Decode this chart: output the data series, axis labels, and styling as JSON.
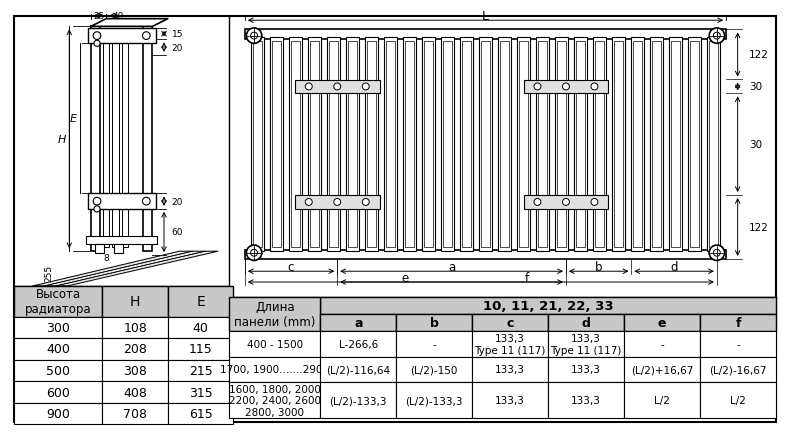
{
  "bg_color": "#ffffff",
  "table_header_bg": "#c8c8c8",
  "left_table": {
    "headers": [
      "Высота\nрадиатора",
      "H",
      "E"
    ],
    "rows": [
      [
        "300",
        "108",
        "40"
      ],
      [
        "400",
        "208",
        "115"
      ],
      [
        "500",
        "308",
        "215"
      ],
      [
        "600",
        "408",
        "315"
      ],
      [
        "900",
        "708",
        "615"
      ]
    ]
  },
  "right_table": {
    "header_merged": "10, 11, 21, 22, 33",
    "col1_header": "Длина\nпанели (mm)",
    "col_headers": [
      "a",
      "b",
      "c",
      "d",
      "e",
      "f"
    ],
    "rows": [
      [
        "400 - 1500",
        "L-266,6",
        "-",
        "133,3\nType 11 (117)",
        "133,3\nType 11 (117)",
        "-",
        "-"
      ],
      [
        "1700, 1900.......2900",
        "(L/2)-116,64",
        "(L/2)-150",
        "133,3",
        "133,3",
        "(L/2)+16,67",
        "(L/2)-16,67"
      ],
      [
        "1600, 1800, 2000\n2200, 2400, 2600\n2800, 3000",
        "(L/2)-133,3",
        "(L/2)-133,3",
        "133,3",
        "133,3",
        "L/2",
        "L/2"
      ]
    ]
  },
  "dims_right": [
    "122",
    "30",
    "30",
    "122"
  ]
}
